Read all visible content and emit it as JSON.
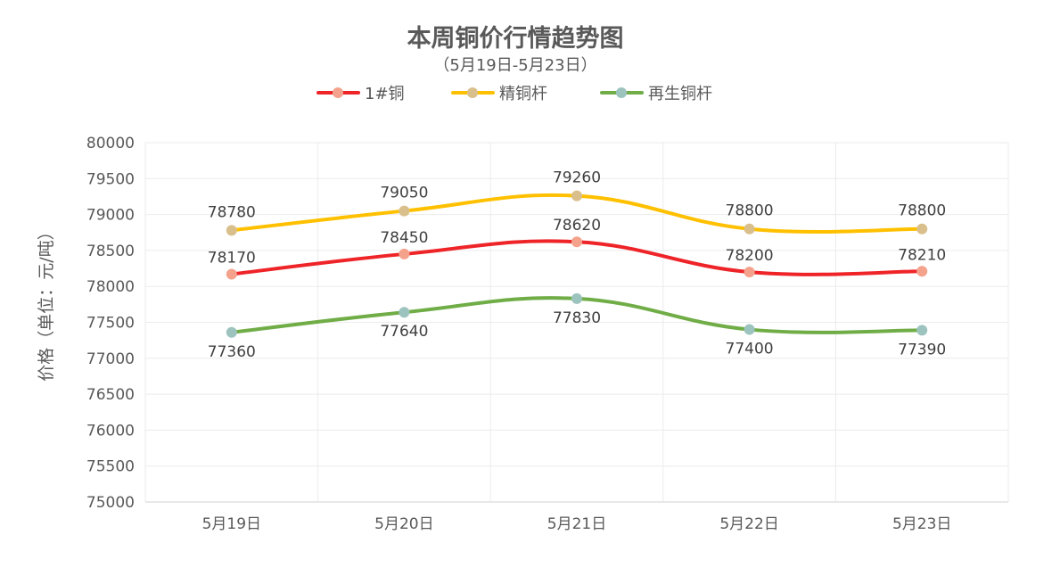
{
  "chart_data": {
    "type": "line",
    "title": "本周铜价行情趋势图",
    "subtitle": "（5月19日-5月23日）",
    "ylabel": "价格（单位：元/吨）",
    "xlabel": "",
    "categories": [
      "5月19日",
      "5月20日",
      "5月21日",
      "5月22日",
      "5月23日"
    ],
    "ylim": [
      75000,
      80000
    ],
    "yticks": [
      75000,
      75500,
      76000,
      76500,
      77000,
      77500,
      78000,
      78500,
      79000,
      79500,
      80000
    ],
    "grid": true,
    "legend_position": "top",
    "series": [
      {
        "name": "1#铜",
        "color": "#ee2428",
        "marker_color": "#f4a28c",
        "values": [
          78170,
          78450,
          78620,
          78200,
          78210
        ]
      },
      {
        "name": "精铜杆",
        "color": "#ffc000",
        "marker_color": "#d9bf8c",
        "values": [
          78780,
          79050,
          79260,
          78800,
          78800
        ]
      },
      {
        "name": "再生铜杆",
        "color": "#70ad47",
        "marker_color": "#9dc3bf",
        "values": [
          77360,
          77640,
          77830,
          77400,
          77390
        ]
      }
    ]
  }
}
